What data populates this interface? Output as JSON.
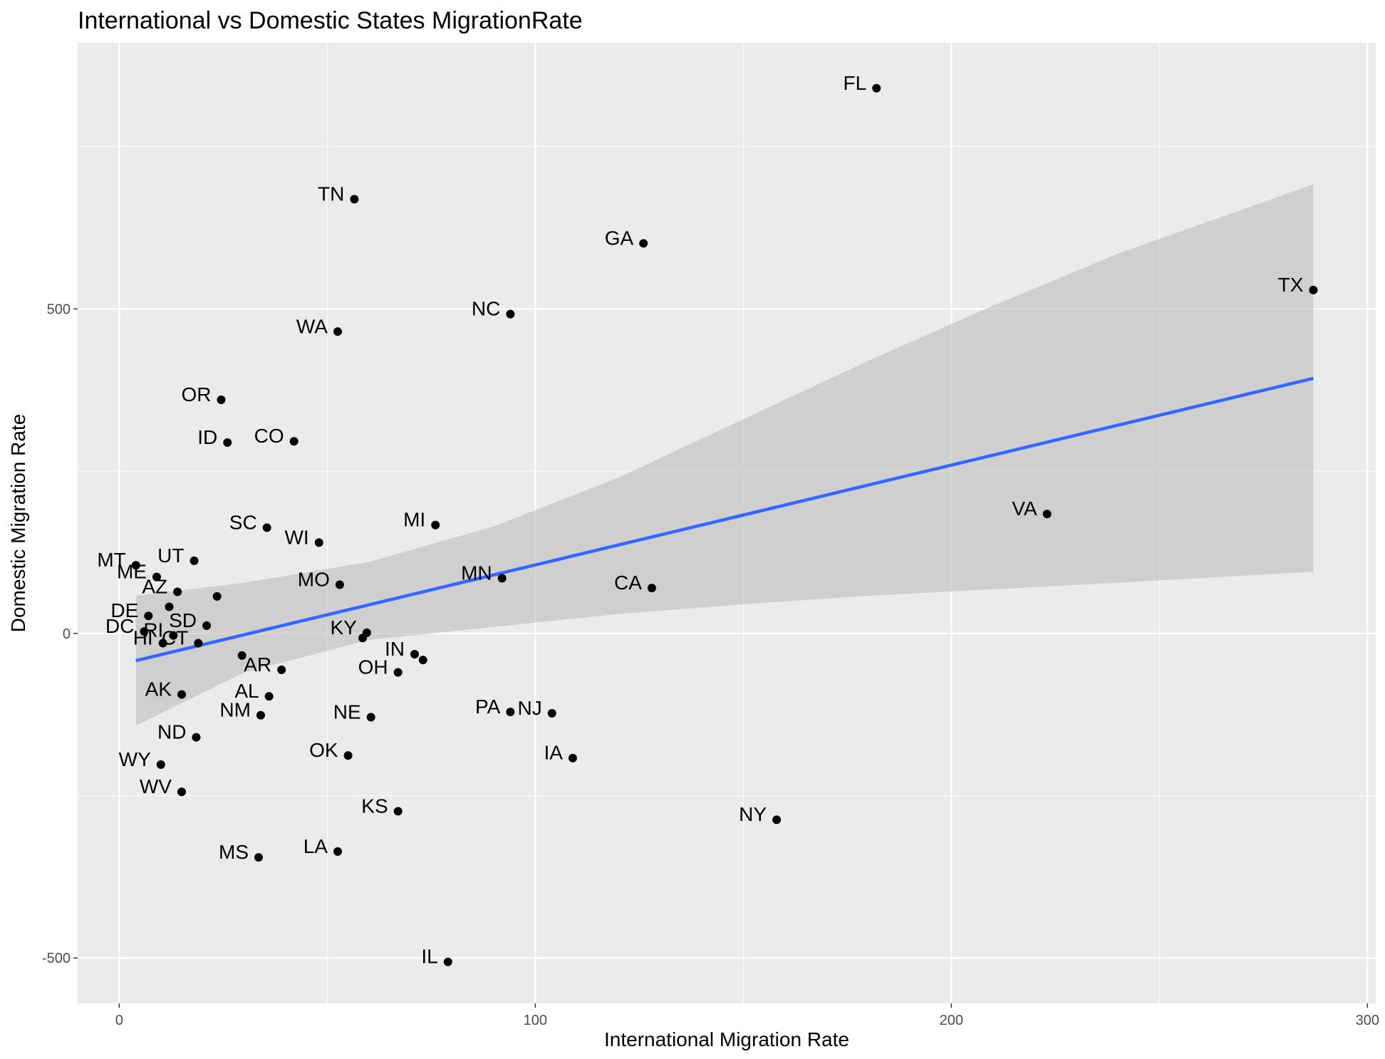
{
  "chart_data": {
    "type": "scatter",
    "title": "International vs Domestic States MigrationRate",
    "xlabel": "International Migration Rate",
    "ylabel": "Domestic Migration Rate",
    "xlim": [
      -10,
      302
    ],
    "ylim": [
      -570,
      910
    ],
    "x_ticks": [
      0,
      100,
      200,
      300
    ],
    "x_tick_labels": [
      "0",
      "100",
      "200",
      "300"
    ],
    "y_ticks": [
      -500,
      0,
      500
    ],
    "y_tick_labels": [
      "-500",
      "0",
      "500"
    ],
    "grid": true,
    "legend": "none",
    "colors": {
      "panel_background": "#ebebeb",
      "grid": "#ffffff",
      "point": "#000000",
      "trend_line": "#3366ff",
      "confidence_band": "#bdbdbd"
    },
    "trend": {
      "method": "linear",
      "x": [
        4,
        287
      ],
      "y": [
        -42,
        393
      ],
      "ribbon": {
        "x": [
          4,
          30,
          60,
          90,
          120,
          150,
          180,
          210,
          240,
          287
        ],
        "lower": [
          -142,
          -60,
          -10,
          10,
          30,
          45,
          58,
          68,
          78,
          95
        ],
        "upper": [
          58,
          78,
          110,
          165,
          240,
          330,
          420,
          505,
          585,
          692
        ]
      }
    },
    "points": [
      {
        "label": "FL",
        "x": 182,
        "y": 840
      },
      {
        "label": "TN",
        "x": 56.5,
        "y": 669
      },
      {
        "label": "GA",
        "x": 126,
        "y": 601
      },
      {
        "label": "TX",
        "x": 287,
        "y": 529
      },
      {
        "label": "NC",
        "x": 94,
        "y": 492
      },
      {
        "label": "WA",
        "x": 52.5,
        "y": 465
      },
      {
        "label": "OR",
        "x": 24.5,
        "y": 360
      },
      {
        "label": "ID",
        "x": 26,
        "y": 294
      },
      {
        "label": "CO",
        "x": 42,
        "y": 296
      },
      {
        "label": "VA",
        "x": 223,
        "y": 184
      },
      {
        "label": "MI",
        "x": 76,
        "y": 167
      },
      {
        "label": "SC",
        "x": 35.5,
        "y": 163
      },
      {
        "label": "WI",
        "x": 48,
        "y": 140
      },
      {
        "label": "MT",
        "x": 4,
        "y": 105
      },
      {
        "label": "UT",
        "x": 18,
        "y": 112
      },
      {
        "label": "MN",
        "x": 92,
        "y": 85
      },
      {
        "label": "ME",
        "x": 9,
        "y": 87
      },
      {
        "label": "MO",
        "x": 53,
        "y": 75
      },
      {
        "label": "CA",
        "x": 128,
        "y": 70
      },
      {
        "label": "AZ",
        "x": 14,
        "y": 64
      },
      {
        "label": "AZ-2",
        "label_hidden": true,
        "x": 23.5,
        "y": 57
      },
      {
        "label": "ME-2",
        "label_hidden": true,
        "x": 12,
        "y": 41
      },
      {
        "label": "DE",
        "x": 7,
        "y": 27
      },
      {
        "label": "SD",
        "x": 21,
        "y": 12
      },
      {
        "label": "DC",
        "x": 6,
        "y": 3
      },
      {
        "label": "KY",
        "x": 59.5,
        "y": 1
      },
      {
        "label": "RI",
        "x": 13,
        "y": -3
      },
      {
        "label": "KY-2",
        "label_hidden": true,
        "x": 58.5,
        "y": -7
      },
      {
        "label": "HI",
        "x": 10.5,
        "y": -15
      },
      {
        "label": "CT",
        "x": 19,
        "y": -15
      },
      {
        "label": "IN",
        "x": 71,
        "y": -32
      },
      {
        "label": "CT-2",
        "label_hidden": true,
        "x": 29.5,
        "y": -34
      },
      {
        "label": "IN-2",
        "label_hidden": true,
        "x": 73,
        "y": -41
      },
      {
        "label": "AR",
        "x": 39,
        "y": -56
      },
      {
        "label": "OH",
        "x": 67,
        "y": -60
      },
      {
        "label": "AL",
        "x": 36,
        "y": -97
      },
      {
        "label": "AK",
        "x": 15,
        "y": -94
      },
      {
        "label": "NJ",
        "x": 104,
        "y": -123
      },
      {
        "label": "PA",
        "x": 94,
        "y": -121
      },
      {
        "label": "NM",
        "x": 34,
        "y": -126
      },
      {
        "label": "NE",
        "x": 60.5,
        "y": -129
      },
      {
        "label": "ND",
        "x": 18.5,
        "y": -160
      },
      {
        "label": "OK",
        "x": 55,
        "y": -188
      },
      {
        "label": "IA",
        "x": 109,
        "y": -192
      },
      {
        "label": "WY",
        "x": 10,
        "y": -202
      },
      {
        "label": "WV",
        "x": 15,
        "y": -244
      },
      {
        "label": "KS",
        "x": 67,
        "y": -274
      },
      {
        "label": "NY",
        "x": 158,
        "y": -287
      },
      {
        "label": "LA",
        "x": 52.5,
        "y": -336
      },
      {
        "label": "MS",
        "x": 33.5,
        "y": -345
      },
      {
        "label": "IL",
        "x": 79,
        "y": -506
      }
    ]
  }
}
